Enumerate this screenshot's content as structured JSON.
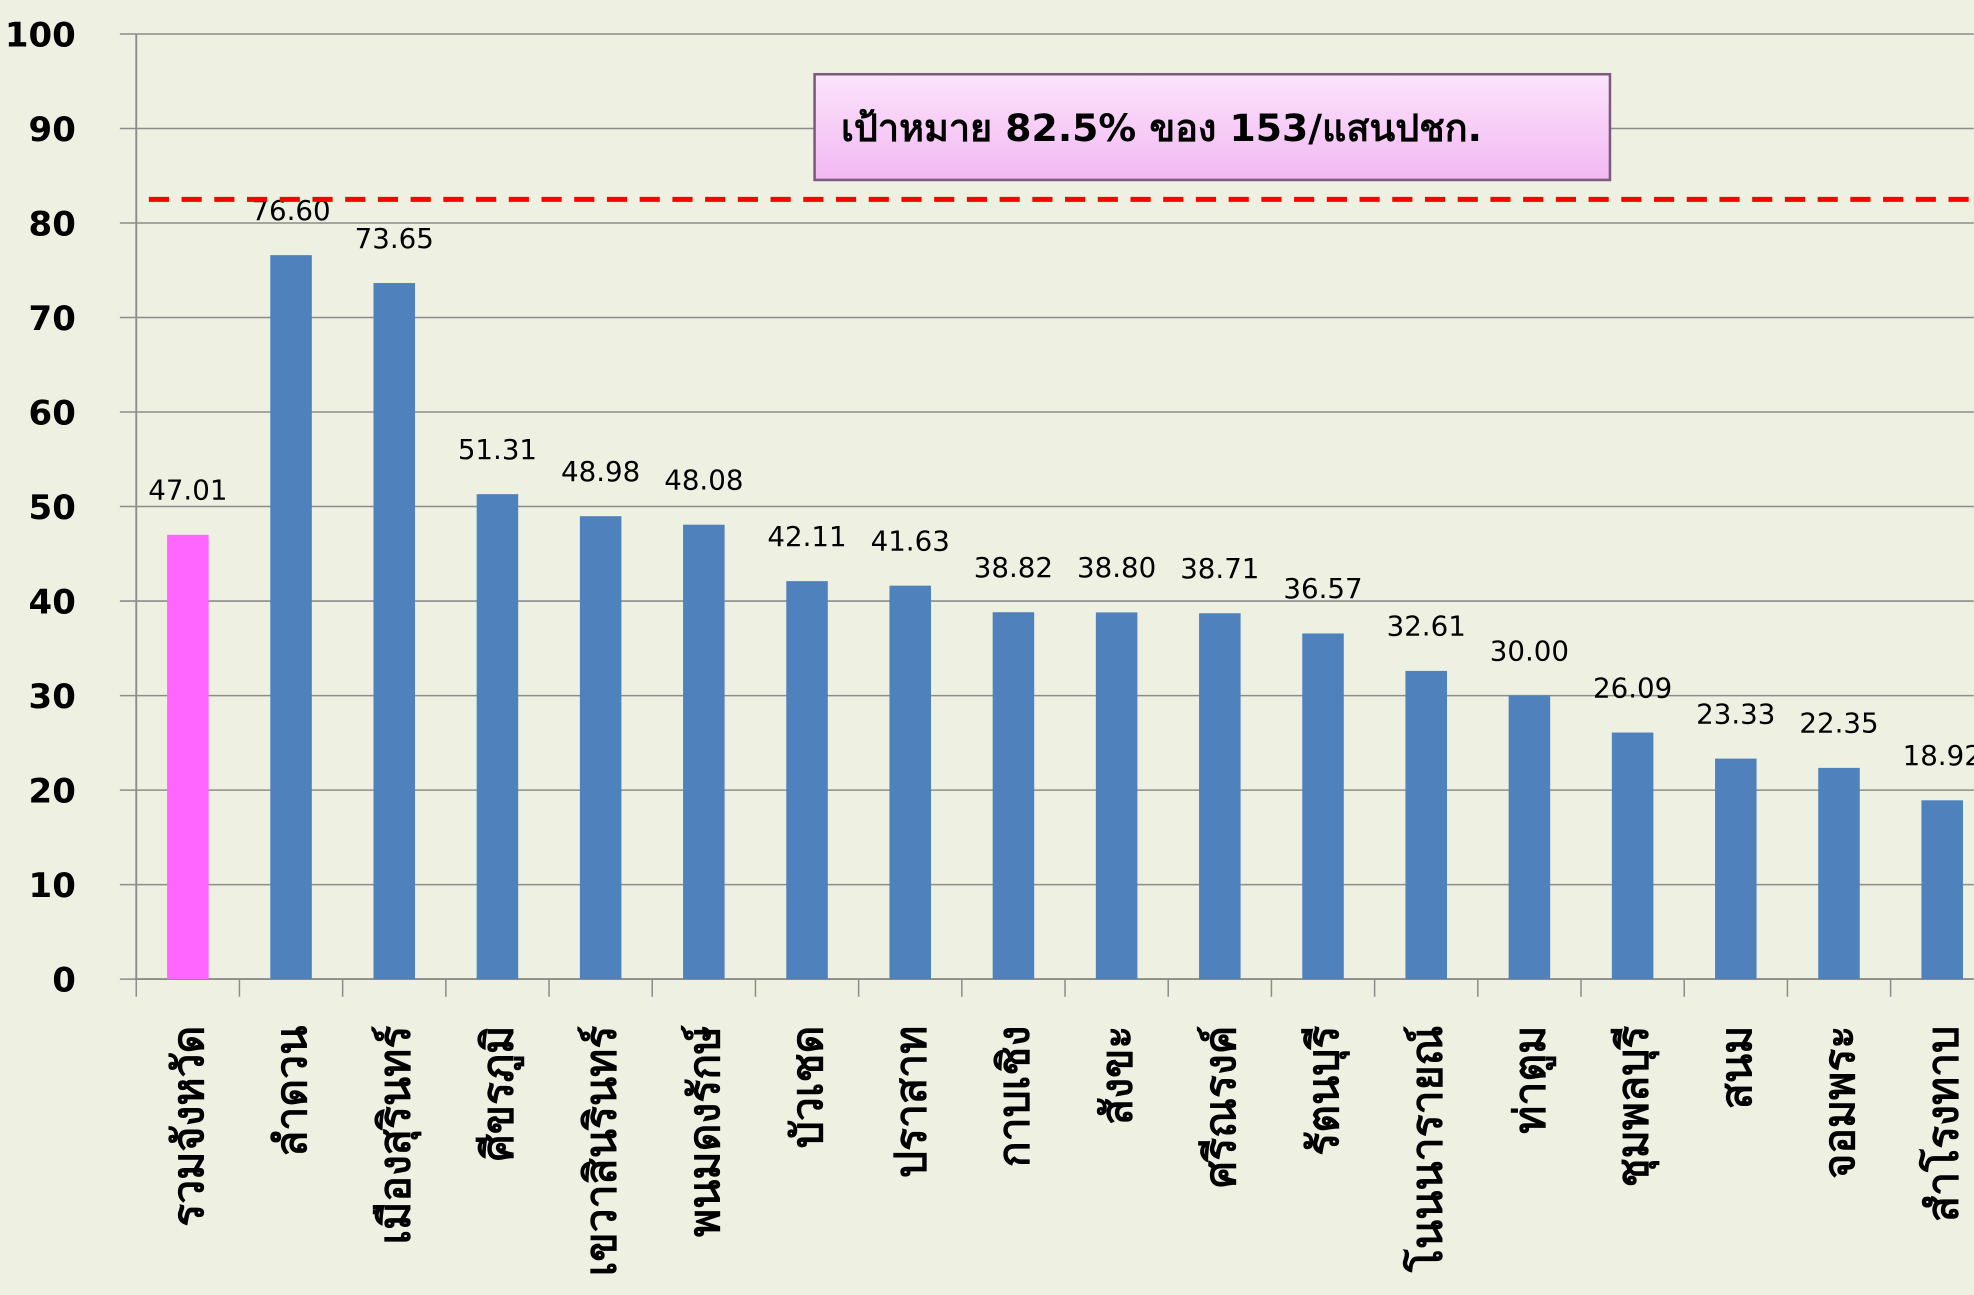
{
  "chart_data": {
    "type": "bar",
    "categories": [
      "รวมจังหวัด",
      "ลำดวน",
      "เมืองสุรินทร์",
      "ศีขรภูมิ",
      "เขวาสินรินทร์",
      "พนมดงรักษ์",
      "บัวเชด",
      "ปราสาท",
      "กาบเชิง",
      "สังขะ",
      "ศรีณรงค์",
      "รัตนบุรี",
      "โนนนารายณ์",
      "ท่าตูม",
      "ชุมพลบุรี",
      "สนม",
      "จอมพระ",
      "สำโรงทาบ"
    ],
    "values": [
      47.01,
      76.6,
      73.65,
      51.31,
      48.98,
      48.08,
      42.11,
      41.63,
      38.82,
      38.8,
      38.71,
      36.57,
      32.61,
      30.0,
      26.09,
      23.33,
      22.35,
      18.92
    ],
    "value_labels": [
      "47.01",
      "76.60",
      "73.65",
      "51.31",
      "48.98",
      "48.08",
      "42.11",
      "41.63",
      "38.82",
      "38.80",
      "38.71",
      "36.57",
      "32.61",
      "30.00",
      "26.09",
      "23.33",
      "22.35",
      "18.92"
    ],
    "colors": [
      "#ff66ff",
      "#4f81bd",
      "#4f81bd",
      "#4f81bd",
      "#4f81bd",
      "#4f81bd",
      "#4f81bd",
      "#4f81bd",
      "#4f81bd",
      "#4f81bd",
      "#4f81bd",
      "#4f81bd",
      "#4f81bd",
      "#4f81bd",
      "#4f81bd",
      "#4f81bd",
      "#4f81bd",
      "#4f81bd"
    ],
    "ylim": [
      0,
      100
    ],
    "yticks": [
      0,
      10,
      20,
      30,
      40,
      50,
      60,
      70,
      80,
      90,
      100
    ],
    "grid": true,
    "target": 82.5,
    "target_color": "#ff0000",
    "annotation": "เป้าหมาย 82.5% ของ 153/แสนปชก."
  }
}
